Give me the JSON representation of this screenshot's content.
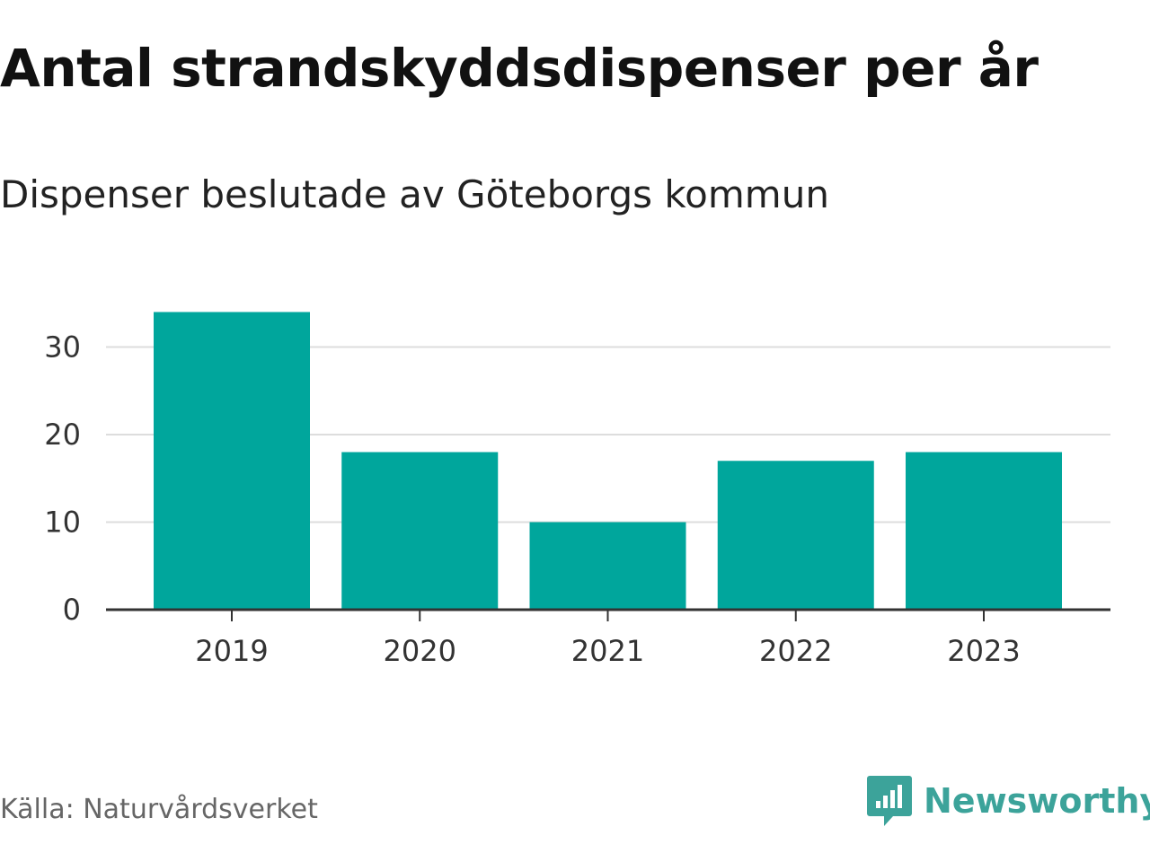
{
  "title": "Antal strandskyddsdispenser per år",
  "subtitle": "Dispenser beslutade av Göteborgs kommun",
  "source": "Källa: Naturvårdsverket",
  "brand": {
    "name": "Newsworthy",
    "logo_icon": "newsworthy-logo-icon",
    "color": "#3ca39a"
  },
  "colors": {
    "bar": "#00a69c",
    "grid": "#dddddd",
    "axis": "#333333"
  },
  "chart_data": {
    "type": "bar",
    "title": "Antal strandskyddsdispenser per år",
    "subtitle": "Dispenser beslutade av Göteborgs kommun",
    "categories": [
      "2019",
      "2020",
      "2021",
      "2022",
      "2023"
    ],
    "values": [
      34,
      18,
      10,
      17,
      18
    ],
    "xlabel": "",
    "ylabel": "",
    "ylim": [
      0,
      34
    ],
    "yticks": [
      0,
      10,
      20,
      30
    ],
    "grid": true,
    "legend": "none"
  }
}
